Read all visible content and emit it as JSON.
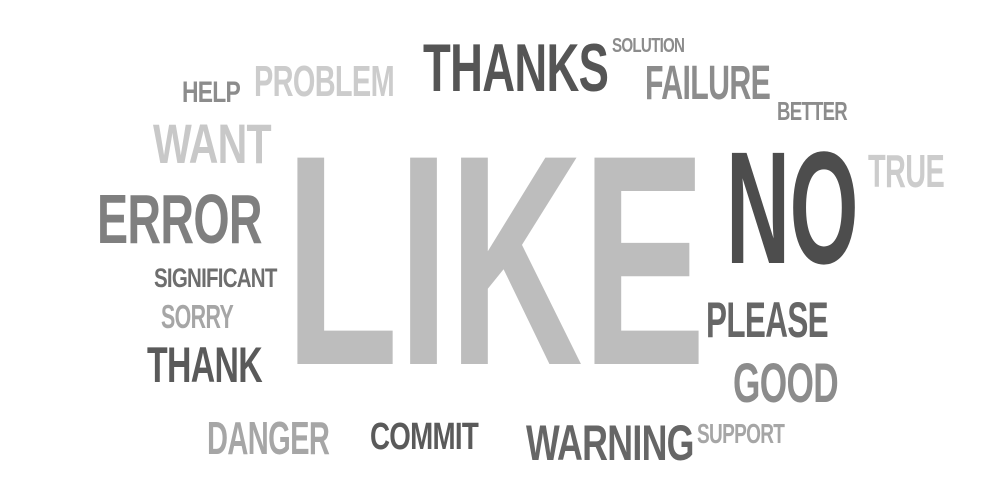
{
  "words": [
    {
      "text": "LIKE",
      "color": "#bdbdbd"
    },
    {
      "text": "NO",
      "color": "#4d4d4d"
    },
    {
      "text": "THANKS",
      "color": "#555555"
    },
    {
      "text": "ERROR",
      "color": "#7f7f7f"
    },
    {
      "text": "FAILURE",
      "color": "#8c8c8c"
    },
    {
      "text": "WANT",
      "color": "#c8c8c8"
    },
    {
      "text": "PROBLEM",
      "color": "#cccccc"
    },
    {
      "text": "HELP",
      "color": "#8c8c8c"
    },
    {
      "text": "SOLUTION",
      "color": "#8c8c8c"
    },
    {
      "text": "BETTER",
      "color": "#8c8c8c"
    },
    {
      "text": "TRUE",
      "color": "#cccccc"
    },
    {
      "text": "SIGNIFICANT",
      "color": "#6e6e6e"
    },
    {
      "text": "SORRY",
      "color": "#a6a6a6"
    },
    {
      "text": "THANK",
      "color": "#5a5a5a"
    },
    {
      "text": "PLEASE",
      "color": "#666666"
    },
    {
      "text": "GOOD",
      "color": "#8c8c8c"
    },
    {
      "text": "DANGER",
      "color": "#a6a6a6"
    },
    {
      "text": "COMMIT",
      "color": "#5a5a5a"
    },
    {
      "text": "WARNING",
      "color": "#666666"
    },
    {
      "text": "SUPPORT",
      "color": "#a6a6a6"
    }
  ]
}
